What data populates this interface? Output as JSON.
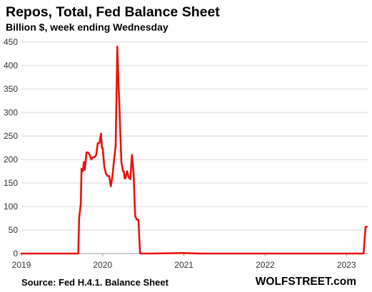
{
  "chart_data": {
    "type": "line",
    "title": "Repos, Total,  Fed Balance Sheet",
    "subtitle": "Billion $, week ending Wednesday",
    "source": "Source: Fed H.4.1. Balance Sheet",
    "brand": "WOLFSTREET.com",
    "ylim": [
      0,
      450
    ],
    "yticks": [
      0,
      50,
      100,
      150,
      200,
      250,
      300,
      350,
      400,
      450
    ],
    "xlim": [
      2019.0,
      2023.27
    ],
    "xticks": [
      {
        "label": "2019",
        "value": 2019
      },
      {
        "label": "2020",
        "value": 2020
      },
      {
        "label": "2021",
        "value": 2021
      },
      {
        "label": "2022",
        "value": 2022
      },
      {
        "label": "2023",
        "value": 2023
      }
    ],
    "grid": "horizontal",
    "series": [
      {
        "color": "#e8130c",
        "x": [
          2019.0,
          2019.7,
          2019.71,
          2019.73,
          2019.74,
          2019.755,
          2019.77,
          2019.78,
          2019.79,
          2019.8,
          2019.82,
          2019.84,
          2019.86,
          2019.88,
          2019.9,
          2019.92,
          2019.94,
          2019.96,
          2019.98,
          2019.99,
          2020.0,
          2020.02,
          2020.04,
          2020.06,
          2020.08,
          2020.1,
          2020.12,
          2020.14,
          2020.16,
          2020.18,
          2020.195,
          2020.205,
          2020.215,
          2020.23,
          2020.25,
          2020.26,
          2020.27,
          2020.28,
          2020.3,
          2020.32,
          2020.34,
          2020.36,
          2020.38,
          2020.4,
          2020.42,
          2020.44,
          2020.46,
          2020.48,
          2020.5,
          2020.52,
          2020.54,
          2020.58,
          2021.0,
          2021.2,
          2023.21,
          2023.235,
          2023.25
        ],
        "y": [
          0,
          0,
          75,
          105,
          180,
          175,
          195,
          178,
          195,
          215,
          215,
          210,
          200,
          205,
          205,
          210,
          235,
          235,
          255,
          225,
          225,
          185,
          170,
          165,
          165,
          143,
          165,
          200,
          230,
          440,
          360,
          320,
          265,
          195,
          175,
          175,
          160,
          160,
          175,
          162,
          158,
          210,
          170,
          80,
          72,
          72,
          0,
          0,
          0,
          0,
          0,
          0,
          1,
          0,
          0,
          57,
          57
        ]
      }
    ]
  }
}
